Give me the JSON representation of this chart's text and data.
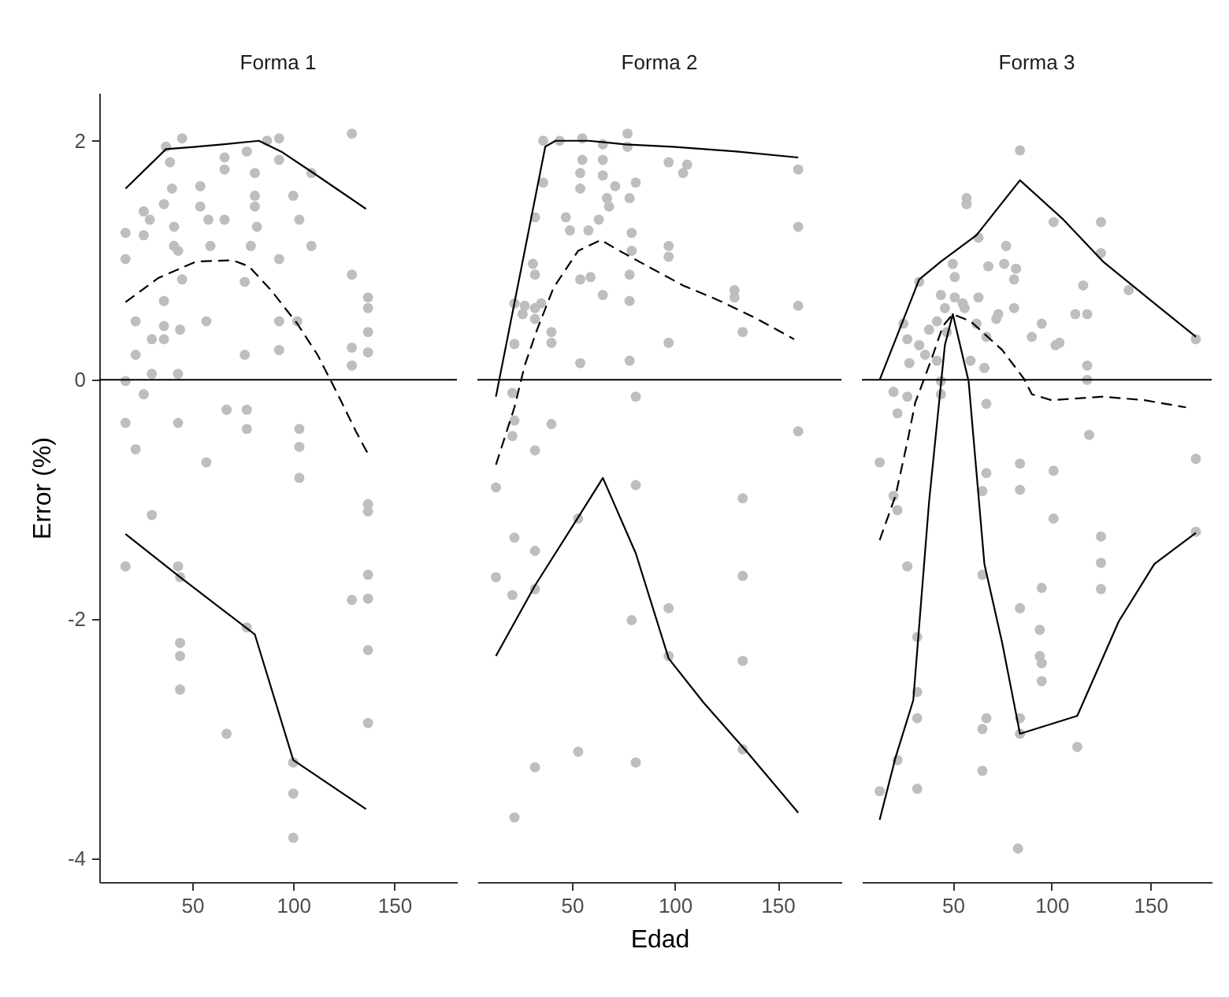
{
  "chart_data": [
    {
      "type": "scatter",
      "title": "Forma 1",
      "ylabel": "Error (%)",
      "xlim": [
        4,
        181
      ],
      "xticks": [
        50,
        100,
        150
      ],
      "ylim": [
        -4.2,
        2.4
      ],
      "yticks": [
        -4,
        -2,
        0,
        2
      ],
      "grid": false,
      "ref_lines": [
        {
          "axis": "y",
          "value": 0,
          "color": "#000000"
        }
      ],
      "series": [
        {
          "marker": "circle",
          "color": "#bebebe",
          "x": [
            17,
            17,
            17,
            17,
            17,
            22,
            22,
            22,
            26,
            26,
            26,
            29,
            30,
            30,
            30,
            36,
            36,
            36,
            36,
            37,
            39,
            40,
            41,
            41,
            43,
            43,
            43,
            43,
            44,
            44,
            44,
            44,
            44,
            45,
            45,
            54,
            54,
            57,
            57,
            58,
            59,
            66,
            66,
            66,
            67,
            67,
            76,
            76,
            77,
            77,
            77,
            77,
            79,
            81,
            81,
            81,
            82,
            87,
            93,
            93,
            93,
            93,
            93,
            100,
            103,
            102,
            103,
            103,
            103,
            100,
            100,
            100,
            109,
            109,
            129,
            129,
            129,
            129,
            129,
            137,
            137,
            137,
            137,
            137,
            137,
            137,
            137,
            137,
            137
          ],
          "values": [
            1.23,
            1.01,
            -0.01,
            -0.36,
            -1.56,
            0.49,
            -0.58,
            0.21,
            -0.12,
            1.41,
            1.21,
            1.34,
            0.05,
            -1.13,
            0.34,
            1.47,
            0.66,
            0.45,
            0.34,
            1.95,
            1.82,
            1.6,
            1.28,
            1.12,
            1.08,
            0.05,
            -0.36,
            -1.56,
            -1.65,
            -2.2,
            -2.31,
            -2.59,
            0.42,
            0.84,
            2.02,
            1.62,
            1.45,
            0.49,
            -0.69,
            1.34,
            1.12,
            1.76,
            1.86,
            1.34,
            -0.25,
            -2.96,
            0.82,
            0.21,
            -0.25,
            -0.41,
            -2.07,
            1.91,
            1.12,
            1.73,
            1.45,
            1.54,
            1.28,
            2.0,
            2.02,
            1.84,
            1.01,
            0.49,
            0.25,
            1.54,
            1.34,
            0.49,
            -0.41,
            -0.56,
            -0.82,
            -3.2,
            -3.46,
            -3.83,
            1.73,
            1.12,
            2.06,
            0.88,
            0.27,
            0.12,
            -1.84,
            0.69,
            0.6,
            0.4,
            0.23,
            -1.04,
            -1.1,
            -1.63,
            -1.83,
            -2.26,
            -2.87
          ]
        },
        {
          "type": "line",
          "color": "#000000",
          "x": [
            17,
            37,
            52,
            65,
            83,
            94,
            110,
            123,
            136
          ],
          "values": [
            1.6,
            1.93,
            1.95,
            1.97,
            2.0,
            1.91,
            1.73,
            1.58,
            1.43
          ]
        },
        {
          "type": "line",
          "color": "#000000",
          "line_style": "dashed",
          "x": [
            17,
            33,
            52,
            70,
            78,
            89,
            102,
            112,
            122,
            131,
            137
          ],
          "values": [
            0.65,
            0.85,
            0.99,
            1.0,
            0.95,
            0.75,
            0.47,
            0.21,
            -0.12,
            -0.43,
            -0.62
          ]
        },
        {
          "type": "line",
          "color": "#000000",
          "x": [
            17,
            44,
            81,
            100,
            136
          ],
          "values": [
            -1.29,
            -1.65,
            -2.13,
            -3.18,
            -3.59
          ]
        }
      ]
    },
    {
      "type": "scatter",
      "title": "Forma 2",
      "xlabel": "Edad",
      "xlim": [
        4,
        181
      ],
      "xticks": [
        50,
        100,
        150
      ],
      "yticks": [
        -4,
        -2,
        0,
        2
      ],
      "tick_labels": "x",
      "grid": false,
      "ref_lines": [
        {
          "axis": "y",
          "value": 0,
          "color": "#000000"
        }
      ],
      "series": [
        {
          "marker": "circle",
          "color": "#bebebe",
          "x": [
            36,
            44,
            55,
            65,
            77,
            77,
            55,
            65,
            54,
            65,
            54,
            36,
            71,
            81,
            78,
            67,
            68,
            97,
            104,
            106,
            32,
            47,
            49,
            58,
            63,
            79,
            79,
            97,
            97,
            31,
            32,
            54,
            59,
            78,
            65,
            78,
            129,
            129,
            22,
            27,
            32,
            35,
            26,
            32,
            40,
            40,
            22,
            97,
            133,
            54,
            78,
            160,
            160,
            160,
            160,
            21,
            22,
            40,
            81,
            21,
            32,
            13,
            81,
            133,
            53,
            22,
            32,
            13,
            21,
            32,
            133,
            79,
            97,
            133,
            97,
            53,
            32,
            81,
            22,
            133
          ],
          "values": [
            2.0,
            2.0,
            2.02,
            1.97,
            2.06,
            1.95,
            1.84,
            1.84,
            1.73,
            1.71,
            1.6,
            1.65,
            1.62,
            1.65,
            1.52,
            1.52,
            1.45,
            1.82,
            1.73,
            1.8,
            1.36,
            1.36,
            1.25,
            1.25,
            1.34,
            1.23,
            1.08,
            1.12,
            1.03,
            0.97,
            0.88,
            0.84,
            0.86,
            0.88,
            0.71,
            0.66,
            0.75,
            0.69,
            0.64,
            0.62,
            0.6,
            0.64,
            0.55,
            0.51,
            0.4,
            0.31,
            0.3,
            0.31,
            0.4,
            0.14,
            0.16,
            1.76,
            1.28,
            0.62,
            -0.43,
            -0.11,
            -0.34,
            -0.37,
            -0.14,
            -0.47,
            -0.59,
            -0.9,
            -0.88,
            -0.99,
            -1.16,
            -1.32,
            -1.43,
            -1.65,
            -1.8,
            -1.75,
            -1.64,
            -2.01,
            -1.91,
            -2.35,
            -2.31,
            -3.11,
            -3.24,
            -3.2,
            -3.66,
            -3.09
          ]
        },
        {
          "type": "line",
          "color": "#000000",
          "x": [
            13,
            37,
            42,
            58,
            76,
            99,
            130,
            160
          ],
          "values": [
            -0.14,
            1.95,
            2.0,
            2.0,
            1.97,
            1.95,
            1.91,
            1.86
          ]
        },
        {
          "type": "line",
          "color": "#000000",
          "line_style": "dashed",
          "x": [
            13,
            22,
            27,
            33,
            41,
            53,
            64,
            73,
            89,
            104,
            122,
            140,
            158
          ],
          "values": [
            -0.71,
            -0.23,
            0.12,
            0.42,
            0.77,
            1.08,
            1.17,
            1.08,
            0.93,
            0.79,
            0.66,
            0.51,
            0.34
          ]
        },
        {
          "type": "line",
          "color": "#000000",
          "x": [
            13,
            32,
            53,
            65,
            81,
            97,
            114,
            135,
            160
          ],
          "values": [
            -2.31,
            -1.72,
            -1.15,
            -0.82,
            -1.45,
            -2.33,
            -2.7,
            -3.11,
            -3.62
          ]
        }
      ]
    },
    {
      "type": "scatter",
      "title": "Forma 3",
      "xlim": [
        4,
        181
      ],
      "xticks": [
        50,
        100,
        150
      ],
      "yticks": [
        -4,
        -2,
        0,
        2
      ],
      "tick_labels": "x",
      "grid": false,
      "ref_lines": [
        {
          "axis": "y",
          "value": 0,
          "color": "#000000"
        }
      ],
      "series": [
        {
          "marker": "circle",
          "color": "#bebebe",
          "x": [
            84,
            57,
            57,
            101,
            125,
            125,
            63,
            77,
            68,
            76,
            82,
            81,
            50,
            51,
            33,
            44,
            51,
            55,
            63,
            116,
            139,
            46,
            56,
            73,
            81,
            72,
            95,
            112,
            118,
            25,
            42,
            38,
            47,
            62,
            67,
            90,
            102,
            104,
            27,
            33,
            36,
            28,
            42,
            59,
            66,
            118,
            118,
            44,
            20,
            27,
            22,
            44,
            67,
            119,
            13,
            67,
            65,
            84,
            84,
            101,
            20,
            22,
            101,
            27,
            125,
            125,
            125,
            65,
            95,
            84,
            32,
            94,
            94,
            95,
            95,
            32,
            32,
            67,
            65,
            84,
            84,
            113,
            65,
            22,
            13,
            32,
            83,
            173,
            173,
            173
          ],
          "values": [
            1.92,
            1.52,
            1.47,
            1.32,
            1.32,
            1.06,
            1.19,
            1.12,
            0.95,
            0.97,
            0.93,
            0.84,
            0.97,
            0.86,
            0.82,
            0.71,
            0.69,
            0.64,
            0.69,
            0.79,
            0.75,
            0.6,
            0.6,
            0.55,
            0.6,
            0.51,
            0.47,
            0.55,
            0.55,
            0.47,
            0.49,
            0.42,
            0.4,
            0.47,
            0.36,
            0.36,
            0.29,
            0.31,
            0.34,
            0.29,
            0.21,
            0.14,
            0.16,
            0.16,
            0.1,
            0.12,
            0.0,
            -0.01,
            -0.1,
            -0.14,
            -0.28,
            -0.12,
            -0.2,
            -0.46,
            -0.69,
            -0.78,
            -0.93,
            -0.7,
            -0.92,
            -0.76,
            -0.97,
            -1.09,
            -1.16,
            -1.56,
            -1.31,
            -1.53,
            -1.75,
            -1.63,
            -1.74,
            -1.91,
            -2.15,
            -2.09,
            -2.31,
            -2.37,
            -2.52,
            -2.61,
            -2.83,
            -2.83,
            -2.92,
            -2.83,
            -2.96,
            -3.07,
            -3.27,
            -3.18,
            -3.44,
            -3.42,
            -3.92,
            0.34,
            -0.66,
            -1.27
          ]
        },
        {
          "type": "line",
          "color": "#000000",
          "x": [
            13,
            33,
            44,
            62,
            84,
            106,
            126,
            152,
            173
          ],
          "values": [
            0.0,
            0.84,
            0.99,
            1.21,
            1.67,
            1.34,
            0.99,
            0.64,
            0.36
          ]
        },
        {
          "type": "line",
          "color": "#000000",
          "line_style": "dashed",
          "x": [
            13,
            21,
            27,
            31,
            36,
            40,
            45,
            50,
            59,
            75,
            86,
            90,
            100,
            126,
            147,
            168
          ],
          "values": [
            -1.34,
            -0.97,
            -0.52,
            -0.19,
            0.03,
            0.21,
            0.45,
            0.55,
            0.49,
            0.25,
            0.01,
            -0.12,
            -0.17,
            -0.14,
            -0.17,
            -0.23
          ]
        },
        {
          "type": "line",
          "color": "#000000",
          "x": [
            13,
            21,
            30,
            38,
            46,
            50,
            58,
            66,
            75,
            84,
            113,
            134,
            152,
            173
          ],
          "values": [
            -3.68,
            -3.16,
            -2.68,
            -1.02,
            0.29,
            0.55,
            -0.01,
            -1.54,
            -2.2,
            -2.96,
            -2.81,
            -2.02,
            -1.54,
            -1.28
          ]
        }
      ]
    }
  ]
}
